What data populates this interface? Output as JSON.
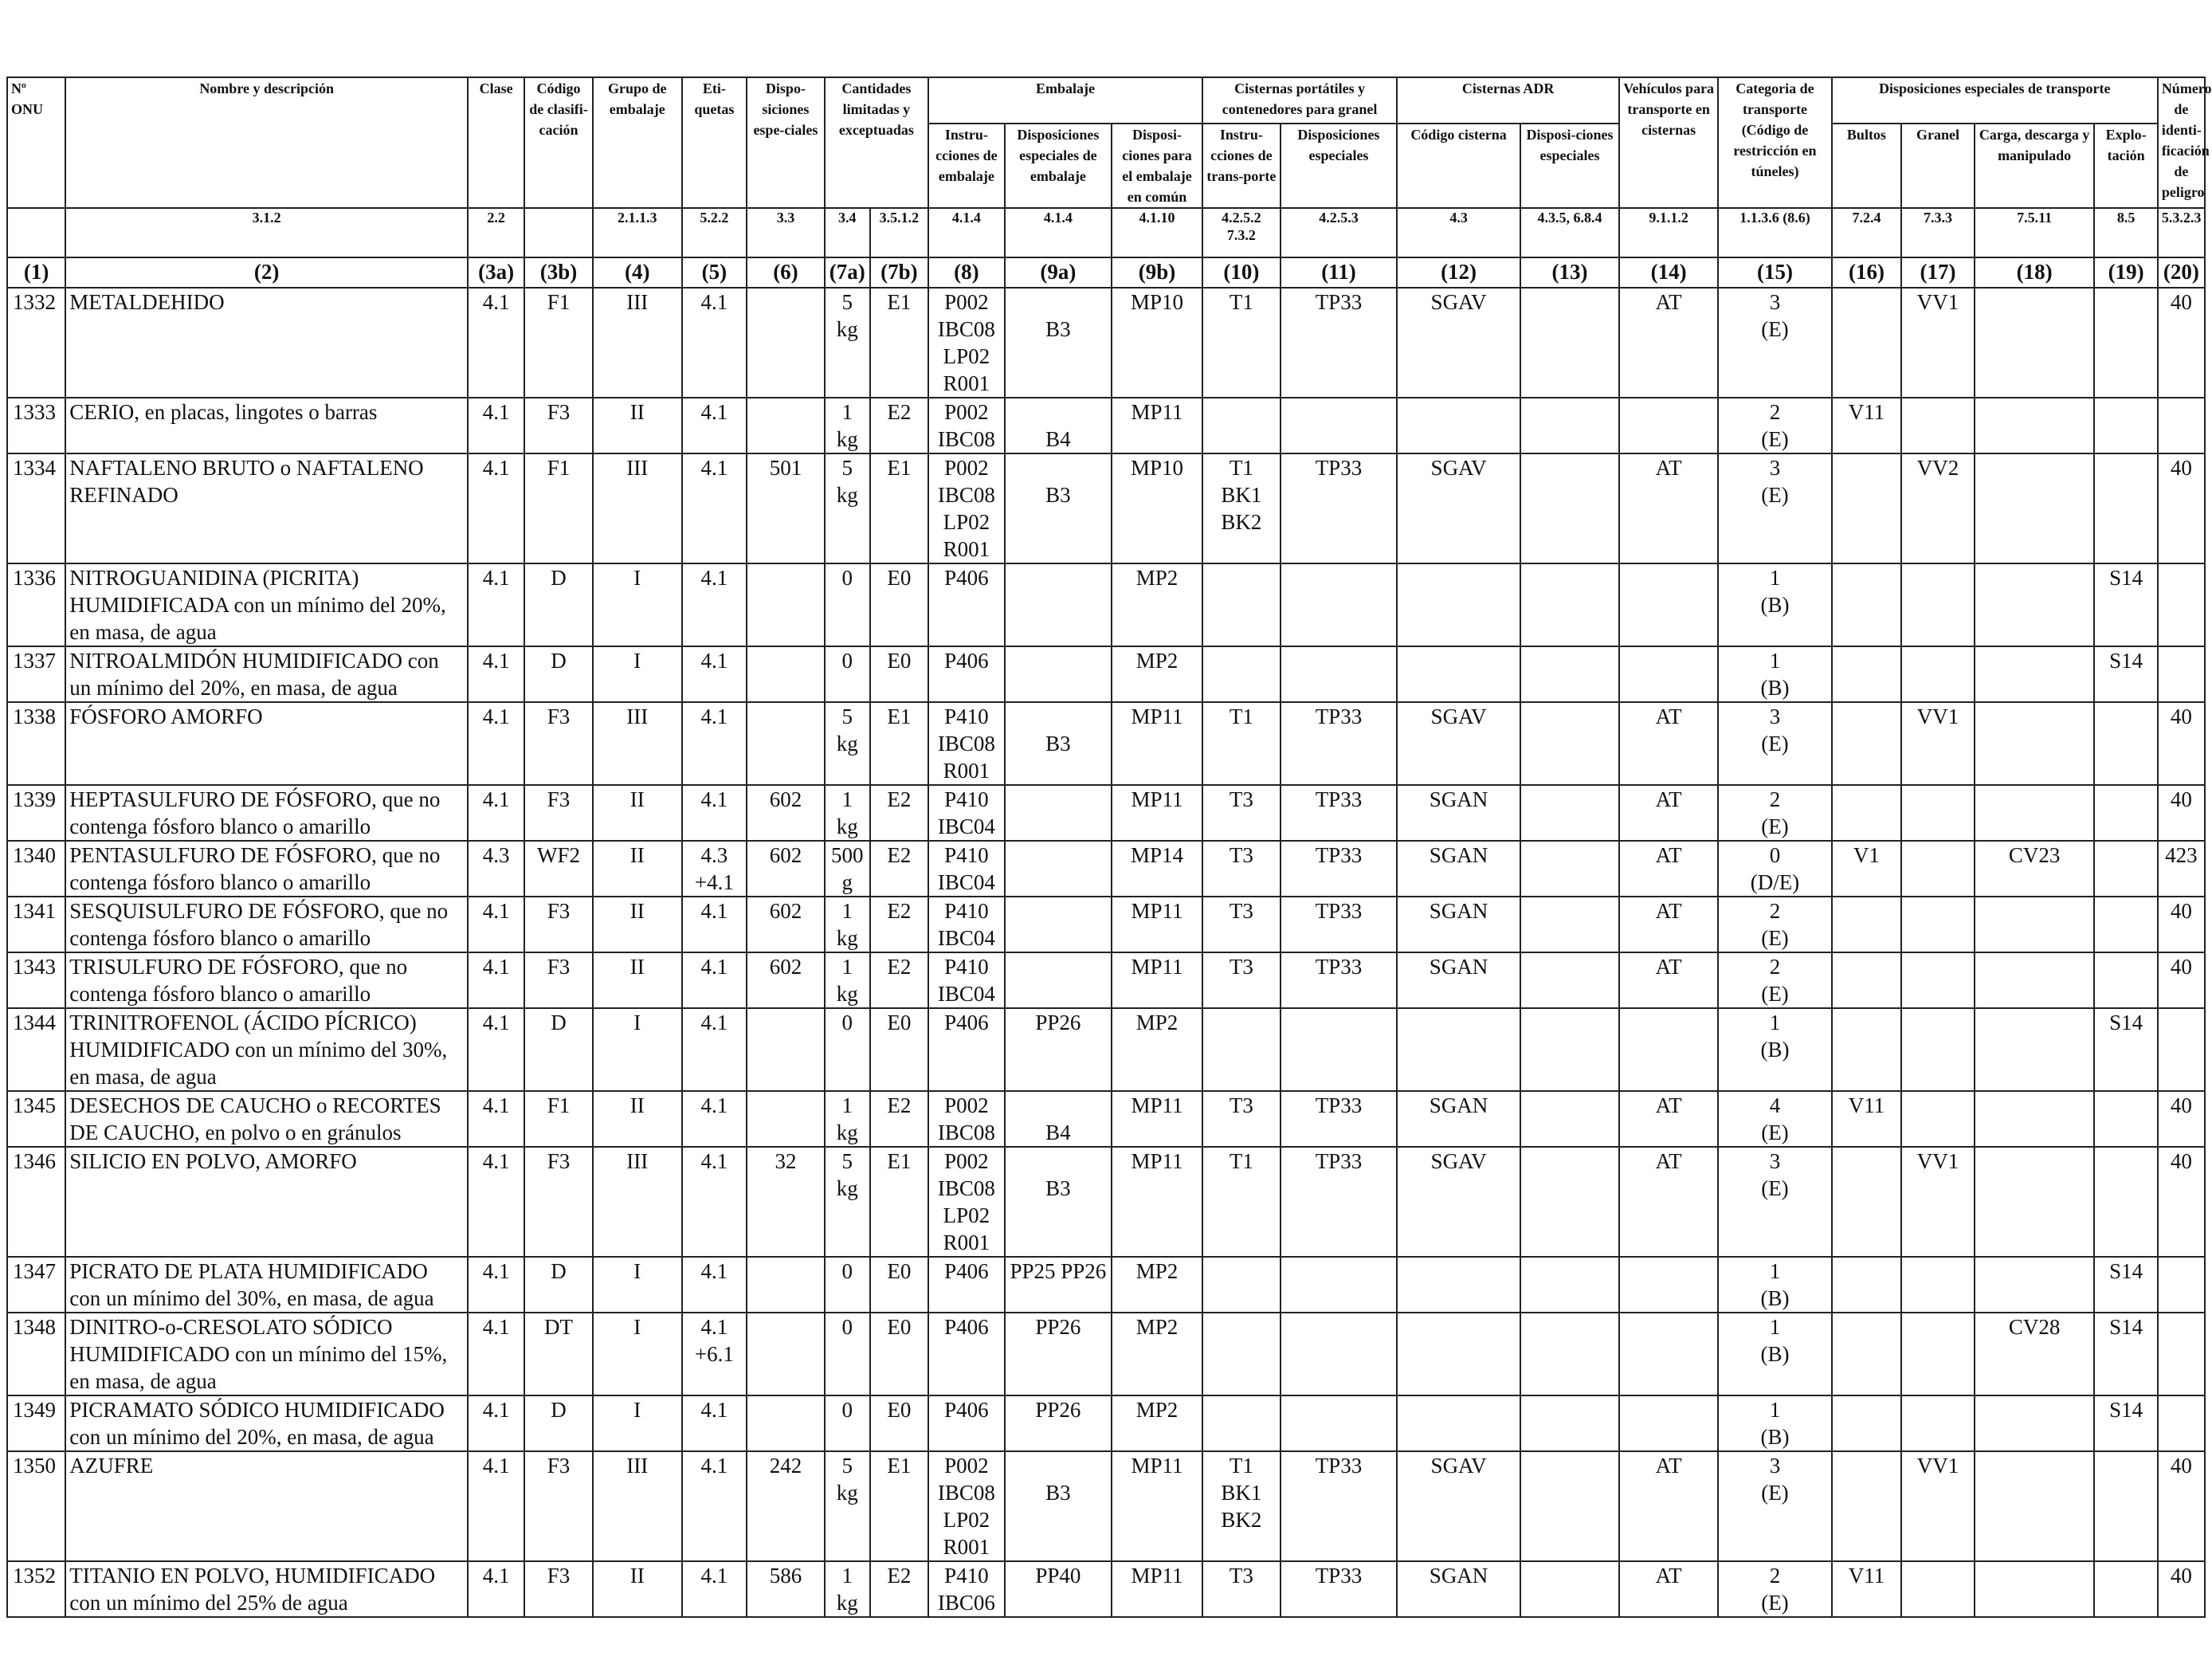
{
  "header": {
    "c1": "Nº ONU",
    "c2": "Nombre y descripción",
    "c3a": "Clase",
    "c3b": "Código de clasifi-cación",
    "c4": "Grupo de embalaje",
    "c5": "Eti-quetas",
    "c6": "Dispo-siciones espe-ciales",
    "c7": "Cantidades limitadas y exceptuadas",
    "embalaje": "Embalaje",
    "c8": "Instru-cciones de embalaje",
    "c9a": "Disposiciones especiales de embalaje",
    "c9b": "Disposi-ciones para el embalaje en común",
    "cisternas_portatiles": "Cisternas portátiles y contenedores para granel",
    "c10": "Instru-cciones de trans-porte",
    "c11": "Disposiciones especiales",
    "cisternas_adr": "Cisternas ADR",
    "c12": "Código cisterna",
    "c13": "Disposi-ciones especiales",
    "c14": "Vehículos para transporte en cisternas",
    "c15": "Categoria de transporte (Código de restricción en túneles)",
    "disp_especiales": "Disposiciones especiales de transporte",
    "c16": "Bultos",
    "c17": "Granel",
    "c18": "Carga, descarga y manipulado",
    "c19": "Explo-tación",
    "c20": "Número de identi-ficación de peligro"
  },
  "refs": {
    "c2": "3.1.2",
    "c3a": "2.2",
    "c4": "2.1.1.3",
    "c5": "5.2.2",
    "c6": "3.3",
    "c7a": "3.4",
    "c7b": "3.5.1.2",
    "c8": "4.1.4",
    "c9a": "4.1.4",
    "c9b": "4.1.10",
    "c10": "4.2.5.2 7.3.2",
    "c11": "4.2.5.3",
    "c12": "4.3",
    "c13": "4.3.5, 6.8.4",
    "c14": "9.1.1.2",
    "c15": "1.1.3.6 (8.6)",
    "c16": "7.2.4",
    "c17": "7.3.3",
    "c18": "7.5.11",
    "c19": "8.5",
    "c20": "5.3.2.3"
  },
  "colnums": [
    "(1)",
    "(2)",
    "(3a)",
    "(3b)",
    "(4)",
    "(5)",
    "(6)",
    "(7a)",
    "(7b)",
    "(8)",
    "(9a)",
    "(9b)",
    "(10)",
    "(11)",
    "(12)",
    "(13)",
    "(14)",
    "(15)",
    "(16)",
    "(17)",
    "(18)",
    "(19)",
    "(20)"
  ],
  "rows": [
    [
      "1332",
      "METALDEHIDO",
      "4.1",
      "F1",
      "III",
      "4.1",
      "",
      "5 kg",
      "E1",
      "P002\nIBC08\nLP02\nR001",
      "\nB3",
      "MP10",
      "T1",
      "TP33",
      "SGAV",
      "",
      "AT",
      "3\n(E)",
      "",
      "VV1",
      "",
      "",
      "40"
    ],
    [
      "1333",
      "CERIO, en placas, lingotes o barras",
      "4.1",
      "F3",
      "II",
      "4.1",
      "",
      "1 kg",
      "E2",
      "P002\nIBC08",
      "\nB4",
      "MP11",
      "",
      "",
      "",
      "",
      "",
      "2\n(E)",
      "V11",
      "",
      "",
      "",
      ""
    ],
    [
      "1334",
      "NAFTALENO BRUTO o NAFTALENO REFINADO",
      "4.1",
      "F1",
      "III",
      "4.1",
      "501",
      "5 kg",
      "E1",
      "P002\nIBC08\nLP02\nR001",
      "\nB3",
      "MP10",
      "T1\nBK1\nBK2",
      "TP33",
      "SGAV",
      "",
      "AT",
      "3\n(E)",
      "",
      "VV2",
      "",
      "",
      "40"
    ],
    [
      "1336",
      "NITROGUANIDINA (PICRITA) HUMIDIFICADA con un mínimo del 20%, en masa, de agua",
      "4.1",
      "D",
      "I",
      "4.1",
      "",
      "0",
      "E0",
      "P406",
      "",
      "MP2",
      "",
      "",
      "",
      "",
      "",
      "1\n(B)",
      "",
      "",
      "",
      "S14",
      ""
    ],
    [
      "1337",
      "NITROALMIDÓN HUMIDIFICADO con un mínimo del 20%, en masa, de agua",
      "4.1",
      "D",
      "I",
      "4.1",
      "",
      "0",
      "E0",
      "P406",
      "",
      "MP2",
      "",
      "",
      "",
      "",
      "",
      "1\n(B)",
      "",
      "",
      "",
      "S14",
      ""
    ],
    [
      "1338",
      "FÓSFORO AMORFO",
      "4.1",
      "F3",
      "III",
      "4.1",
      "",
      "5 kg",
      "E1",
      "P410\nIBC08\nR001",
      "\nB3",
      "MP11",
      "T1",
      "TP33",
      "SGAV",
      "",
      "AT",
      "3\n(E)",
      "",
      "VV1",
      "",
      "",
      "40"
    ],
    [
      "1339",
      "HEPTASULFURO DE FÓSFORO, que no contenga fósforo blanco o amarillo",
      "4.1",
      "F3",
      "II",
      "4.1",
      "602",
      "1 kg",
      "E2",
      "P410\nIBC04",
      "",
      "MP11",
      "T3",
      "TP33",
      "SGAN",
      "",
      "AT",
      "2\n(E)",
      "",
      "",
      "",
      "",
      "40"
    ],
    [
      "1340",
      "PENTASULFURO DE FÓSFORO, que no contenga fósforo blanco o amarillo",
      "4.3",
      "WF2",
      "II",
      "4.3\n+4.1",
      "602",
      "500\ng",
      "E2",
      "P410\nIBC04",
      "",
      "MP14",
      "T3",
      "TP33",
      "SGAN",
      "",
      "AT",
      "0\n(D/E)",
      "V1",
      "",
      "CV23",
      "",
      "423"
    ],
    [
      "1341",
      "SESQUISULFURO DE FÓSFORO, que no contenga fósforo blanco o amarillo",
      "4.1",
      "F3",
      "II",
      "4.1",
      "602",
      "1 kg",
      "E2",
      "P410\nIBC04",
      "",
      "MP11",
      "T3",
      "TP33",
      "SGAN",
      "",
      "AT",
      "2\n(E)",
      "",
      "",
      "",
      "",
      "40"
    ],
    [
      "1343",
      "TRISULFURO DE FÓSFORO, que no contenga fósforo blanco o amarillo",
      "4.1",
      "F3",
      "II",
      "4.1",
      "602",
      "1 kg",
      "E2",
      "P410\nIBC04",
      "",
      "MP11",
      "T3",
      "TP33",
      "SGAN",
      "",
      "AT",
      "2\n(E)",
      "",
      "",
      "",
      "",
      "40"
    ],
    [
      "1344",
      "TRINITROFENOL (ÁCIDO PÍCRICO) HUMIDIFICADO con un mínimo del 30%, en masa, de agua",
      "4.1",
      "D",
      "I",
      "4.1",
      "",
      "0",
      "E0",
      "P406",
      "PP26",
      "MP2",
      "",
      "",
      "",
      "",
      "",
      "1\n(B)",
      "",
      "",
      "",
      "S14",
      ""
    ],
    [
      "1345",
      "DESECHOS DE CAUCHO o RECORTES DE CAUCHO, en polvo o en gránulos",
      "4.1",
      "F1",
      "II",
      "4.1",
      "",
      "1 kg",
      "E2",
      "P002\nIBC08",
      "\nB4",
      "MP11",
      "T3",
      "TP33",
      "SGAN",
      "",
      "AT",
      "4\n(E)",
      "V11",
      "",
      "",
      "",
      "40"
    ],
    [
      "1346",
      "SILICIO EN POLVO, AMORFO",
      "4.1",
      "F3",
      "III",
      "4.1",
      "32",
      "5 kg",
      "E1",
      "P002\nIBC08\nLP02\nR001",
      "\nB3",
      "MP11",
      "T1",
      "TP33",
      "SGAV",
      "",
      "AT",
      "3\n(E)",
      "",
      "VV1",
      "",
      "",
      "40"
    ],
    [
      "1347",
      "PICRATO DE PLATA HUMIDIFICADO con un mínimo del 30%, en masa, de agua",
      "4.1",
      "D",
      "I",
      "4.1",
      "",
      "0",
      "E0",
      "P406",
      "PP25 PP26",
      "MP2",
      "",
      "",
      "",
      "",
      "",
      "1\n(B)",
      "",
      "",
      "",
      "S14",
      ""
    ],
    [
      "1348",
      "DINITRO-o-CRESOLATO SÓDICO HUMIDIFICADO con un mínimo del 15%, en masa, de agua",
      "4.1",
      "DT",
      "I",
      "4.1\n+6.1",
      "",
      "0",
      "E0",
      "P406",
      "PP26",
      "MP2",
      "",
      "",
      "",
      "",
      "",
      "1\n(B)",
      "",
      "",
      "CV28",
      "S14",
      ""
    ],
    [
      "1349",
      "PICRAMATO SÓDICO HUMIDIFICADO con un mínimo del 20%, en masa, de agua",
      "4.1",
      "D",
      "I",
      "4.1",
      "",
      "0",
      "E0",
      "P406",
      "PP26",
      "MP2",
      "",
      "",
      "",
      "",
      "",
      "1\n(B)",
      "",
      "",
      "",
      "S14",
      ""
    ],
    [
      "1350",
      "AZUFRE",
      "4.1",
      "F3",
      "III",
      "4.1",
      "242",
      "5 kg",
      "E1",
      "P002\nIBC08\nLP02\nR001",
      "\nB3",
      "MP11",
      "T1\nBK1\nBK2",
      "TP33",
      "SGAV",
      "",
      "AT",
      "3\n(E)",
      "",
      "VV1",
      "",
      "",
      "40"
    ],
    [
      "1352",
      "TITANIO EN POLVO, HUMIDIFICADO con un mínimo del 25% de agua",
      "4.1",
      "F3",
      "II",
      "4.1",
      "586",
      "1 kg",
      "E2",
      "P410\nIBC06",
      "PP40",
      "MP11",
      "T3",
      "TP33",
      "SGAN",
      "",
      "AT",
      "2\n(E)",
      "V11",
      "",
      "",
      "",
      "40"
    ]
  ]
}
